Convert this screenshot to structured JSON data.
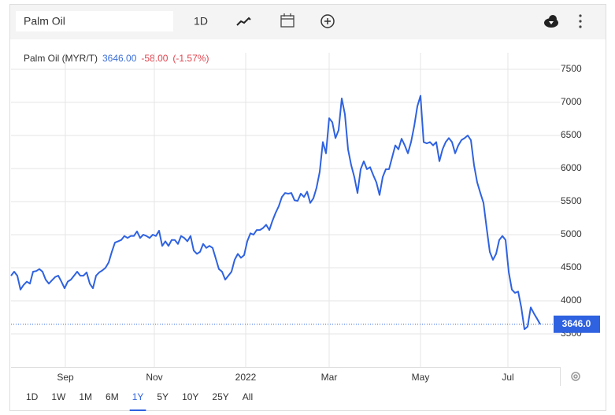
{
  "toolbar": {
    "search": "Palm Oil",
    "interval": "1D"
  },
  "range_buttons": [
    "1D",
    "1W",
    "1M",
    "6M",
    "1Y",
    "5Y",
    "10Y",
    "25Y",
    "All"
  ],
  "chart_data": {
    "type": "line",
    "title": "Palm Oil (MYR/T)",
    "price": "3646.00",
    "change": "-58.00",
    "change_pct": "(-1.57%)",
    "series": [
      {
        "name": "Palm Oil",
        "color": "#2f62e0",
        "values": [
          4380,
          4440,
          4380,
          4170,
          4240,
          4290,
          4260,
          4440,
          4450,
          4480,
          4440,
          4320,
          4260,
          4310,
          4360,
          4380,
          4290,
          4190,
          4290,
          4320,
          4380,
          4440,
          4380,
          4380,
          4430,
          4260,
          4190,
          4380,
          4430,
          4460,
          4500,
          4580,
          4740,
          4880,
          4900,
          4920,
          4980,
          4950,
          4980,
          4980,
          5050,
          4950,
          5000,
          4980,
          4950,
          5000,
          4980,
          5060,
          4830,
          4900,
          4830,
          4920,
          4920,
          4860,
          4980,
          4950,
          4900,
          4980,
          4760,
          4710,
          4740,
          4860,
          4800,
          4830,
          4800,
          4640,
          4480,
          4440,
          4320,
          4380,
          4440,
          4620,
          4710,
          4650,
          4690,
          4900,
          5020,
          5000,
          5070,
          5070,
          5100,
          5150,
          5070,
          5210,
          5330,
          5430,
          5570,
          5630,
          5620,
          5630,
          5520,
          5510,
          5620,
          5570,
          5650,
          5480,
          5550,
          5710,
          5950,
          6400,
          6230,
          6760,
          6700,
          6460,
          6580,
          7060,
          6820,
          6290,
          6050,
          5870,
          5630,
          5990,
          6110,
          5990,
          6020,
          5900,
          5790,
          5600,
          5870,
          5990,
          5990,
          6170,
          6350,
          6290,
          6450,
          6350,
          6230,
          6400,
          6640,
          6940,
          7100,
          6400,
          6380,
          6400,
          6350,
          6400,
          6110,
          6290,
          6400,
          6460,
          6400,
          6230,
          6350,
          6430,
          6460,
          6500,
          6430,
          6050,
          5790,
          5630,
          5480,
          5100,
          4740,
          4620,
          4710,
          4920,
          4980,
          4920,
          4440,
          4170,
          4120,
          4140,
          3900,
          3570,
          3610,
          3900,
          3810,
          3730,
          3646
        ]
      }
    ],
    "xlim": [
      0,
      174.25
    ],
    "xticks": [
      {
        "value": 17.25,
        "label": "Sep"
      },
      {
        "value": 45.5,
        "label": "Nov"
      },
      {
        "value": 74.5,
        "label": "2022"
      },
      {
        "value": 101,
        "label": "Mar"
      },
      {
        "value": 130,
        "label": "May"
      },
      {
        "value": 157.75,
        "label": "Jul"
      }
    ],
    "ylim": [
      3000,
      7750
    ],
    "yticks": [
      3500,
      4000,
      4500,
      5000,
      5500,
      6000,
      6500,
      7000,
      7500
    ],
    "grid": true,
    "last_price": {
      "value": 3646,
      "label": "3646.0",
      "color": "#2f62e0"
    }
  }
}
